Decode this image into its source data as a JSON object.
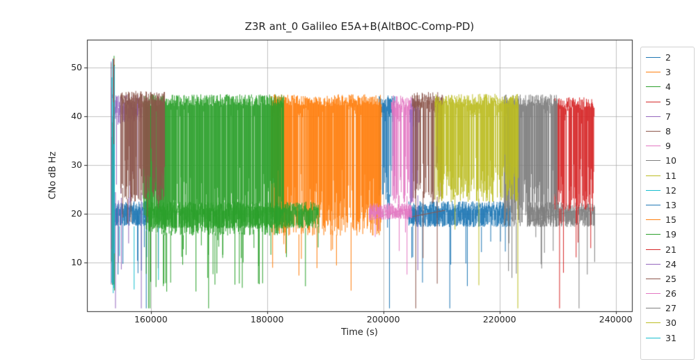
{
  "title": "Z3R ant_0 Galileo E5A+B(AltBOC-Comp-PD)",
  "chart_data": {
    "type": "line",
    "title": "Z3R ant_0 Galileo E5A+B(AltBOC-Comp-PD)",
    "xlabel": "Time (s)",
    "ylabel": "CNo dB Hz",
    "xlim": [
      149000,
      242800
    ],
    "ylim": [
      0,
      55.7
    ],
    "xticks": [
      160000,
      180000,
      200000,
      220000,
      240000
    ],
    "yticks": [
      10,
      20,
      30,
      40,
      50
    ],
    "grid": true,
    "grid_color": "#b0b0b0",
    "axes_color": "#262626",
    "legend_position": "right-outside",
    "description": "CNo (dB-Hz) vs time for Galileo E5A+B AltBOC tracking; one noisy trace per satellite. Tracked satellites hold ~40-45 dB-Hz (or ~17-22 dB-Hz band) with frequent dropout spikes toward 0; an initial multi-satellite burst near t=153300 reaches ~53 dB-Hz.",
    "series": [
      {
        "name": "2",
        "color": "#1f77b4",
        "segments": [
          {
            "kind": "band",
            "t0": 153500,
            "t1": 159600,
            "top": 21.6,
            "jitter": 1.0,
            "band": 1.5,
            "drop_rate": 0.85,
            "drop_min": 17.5,
            "deep_rate": 0.05,
            "deep_min": 5
          },
          {
            "kind": "band",
            "t0": 199300,
            "t1": 202000,
            "top": 43.0,
            "jitter": 1.3,
            "band": 3.0,
            "drop_rate": 0.5,
            "drop_min": 22,
            "deep_rate": 0.08,
            "deep_min": 5
          }
        ]
      },
      {
        "name": "3",
        "color": "#ff7f0e",
        "segments": [
          {
            "kind": "band",
            "t0": 180700,
            "t1": 199700,
            "top": 43.3,
            "jitter": 1.2,
            "band": 2.5,
            "drop_rate": 0.88,
            "drop_min": 15.5,
            "deep_rate": 0.06,
            "deep_min": 4
          }
        ]
      },
      {
        "name": "4",
        "color": "#2ca02c",
        "segments": [
          {
            "kind": "band",
            "t0": 158700,
            "t1": 182900,
            "top": 43.3,
            "jitter": 1.2,
            "band": 2.5,
            "drop_rate": 0.88,
            "drop_min": 15.5,
            "deep_rate": 0.06,
            "deep_min": 4
          }
        ]
      },
      {
        "name": "5",
        "color": "#d62728",
        "segments": []
      },
      {
        "name": "7",
        "color": "#9467bd",
        "segments": [
          {
            "kind": "band",
            "t0": 153400,
            "t1": 158500,
            "top": 43.0,
            "jitter": 1.5,
            "band": 3.5,
            "drop_rate": 0.12,
            "drop_min": 22,
            "deep_rate": 0.06,
            "deep_min": 4
          }
        ]
      },
      {
        "name": "8",
        "color": "#8c564b",
        "segments": [
          {
            "kind": "band",
            "t0": 154800,
            "t1": 162400,
            "top": 44.0,
            "jitter": 1.2,
            "band": 2.0,
            "drop_rate": 0.85,
            "drop_min": 22.5,
            "deep_rate": 0.05,
            "deep_min": 5
          }
        ]
      },
      {
        "name": "9",
        "color": "#e377c2",
        "segments": [
          {
            "kind": "band",
            "t0": 201400,
            "t1": 205200,
            "top": 43.0,
            "jitter": 1.3,
            "band": 3.0,
            "drop_rate": 0.7,
            "drop_min": 22,
            "deep_rate": 0.06,
            "deep_min": 5
          }
        ]
      },
      {
        "name": "10",
        "color": "#7f7f7f",
        "segments": [
          {
            "kind": "band",
            "t0": 224800,
            "t1": 236400,
            "top": 21.4,
            "jitter": 1.0,
            "band": 1.5,
            "drop_rate": 0.8,
            "drop_min": 17.3,
            "deep_rate": 0.04,
            "deep_min": 5
          },
          {
            "kind": "line",
            "points": [
              [
                224800,
                18.4
              ],
              [
                229000,
                19.6
              ],
              [
                233000,
                20.6
              ],
              [
                236200,
                21.2
              ]
            ]
          }
        ]
      },
      {
        "name": "11",
        "color": "#bcbd22",
        "segments": []
      },
      {
        "name": "12",
        "color": "#17becf",
        "segments": [
          {
            "kind": "spikes",
            "t0": 153400,
            "t1": 162000,
            "rate": 0.025,
            "low": 4,
            "high": 22
          }
        ]
      },
      {
        "name": "13",
        "color": "#1f77b4",
        "segments": [
          {
            "kind": "band",
            "t0": 204400,
            "t1": 221900,
            "top": 21.6,
            "jitter": 1.0,
            "band": 1.5,
            "drop_rate": 0.85,
            "drop_min": 17.3,
            "deep_rate": 0.05,
            "deep_min": 4
          }
        ]
      },
      {
        "name": "15",
        "color": "#ff7f0e",
        "segments": []
      },
      {
        "name": "19",
        "color": "#2ca02c",
        "segments": [
          {
            "kind": "band",
            "t0": 159600,
            "t1": 188900,
            "top": 21.5,
            "jitter": 1.0,
            "band": 1.5,
            "drop_rate": 0.85,
            "drop_min": 17.0,
            "deep_rate": 0.04,
            "deep_min": 5
          }
        ]
      },
      {
        "name": "21",
        "color": "#d62728",
        "segments": [
          {
            "kind": "band",
            "t0": 229500,
            "t1": 236300,
            "top": 42.6,
            "jitter": 1.3,
            "band": 2.5,
            "drop_rate": 0.8,
            "drop_min": 20.5,
            "deep_rate": 0.04,
            "deep_min": 6
          }
        ]
      },
      {
        "name": "24",
        "color": "#9467bd",
        "segments": [
          {
            "kind": "band",
            "t0": 204600,
            "t1": 206200,
            "top": 42.5,
            "jitter": 1.4,
            "band": 3.0,
            "drop_rate": 0.3,
            "drop_min": 22,
            "deep_rate": 0.05,
            "deep_min": 5
          }
        ]
      },
      {
        "name": "25",
        "color": "#8c564b",
        "segments": [
          {
            "kind": "band",
            "t0": 205000,
            "t1": 210200,
            "top": 43.8,
            "jitter": 1.2,
            "band": 2.5,
            "drop_rate": 0.6,
            "drop_min": 22,
            "deep_rate": 0.05,
            "deep_min": 5
          },
          {
            "kind": "line",
            "points": [
              [
                205000,
                19.4
              ],
              [
                208000,
                20.1
              ],
              [
                210600,
                20.7
              ]
            ]
          }
        ]
      },
      {
        "name": "26",
        "color": "#e377c2",
        "segments": [
          {
            "kind": "band",
            "t0": 197600,
            "t1": 204900,
            "top": 21.3,
            "jitter": 0.9,
            "band": 1.5,
            "drop_rate": 0.7,
            "drop_min": 18.8,
            "deep_rate": 0.03,
            "deep_min": 6
          },
          {
            "kind": "line",
            "points": [
              [
                197600,
                18.7
              ],
              [
                200500,
                19.8
              ],
              [
                203000,
                20.6
              ],
              [
                204900,
                21.1
              ]
            ]
          }
        ]
      },
      {
        "name": "27",
        "color": "#7f7f7f",
        "segments": [
          {
            "kind": "band",
            "t0": 220800,
            "t1": 230000,
            "top": 43.3,
            "jitter": 1.2,
            "band": 2.5,
            "drop_rate": 0.85,
            "drop_min": 17.3,
            "deep_rate": 0.05,
            "deep_min": 4
          }
        ]
      },
      {
        "name": "30",
        "color": "#bcbd22",
        "segments": [
          {
            "kind": "band",
            "t0": 208900,
            "t1": 223300,
            "top": 43.4,
            "jitter": 1.2,
            "band": 2.5,
            "drop_rate": 0.8,
            "drop_min": 22.3,
            "deep_rate": 0.05,
            "deep_min": 4
          }
        ]
      },
      {
        "name": "31",
        "color": "#17becf",
        "segments": [
          {
            "kind": "spikes",
            "t0": 196800,
            "t1": 202800,
            "rate": 0.02,
            "low": 4,
            "high": 22
          }
        ]
      }
    ],
    "burst": {
      "t0": 153150,
      "t1": 153750,
      "series": [
        "4",
        "5",
        "7",
        "8",
        "12"
      ],
      "low": 3.5,
      "high": 53
    }
  }
}
